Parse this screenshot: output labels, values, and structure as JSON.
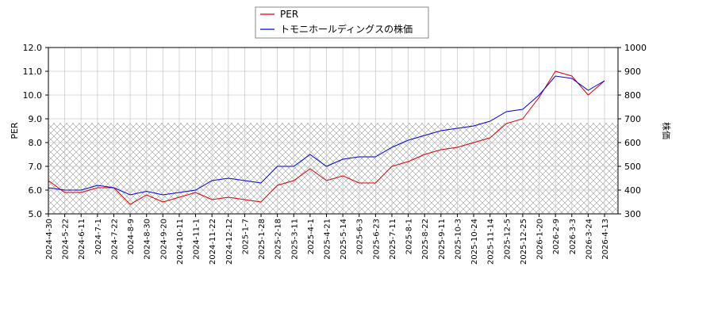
{
  "chart_data": {
    "type": "line",
    "x": [
      "2024-4-30",
      "2024-5-22",
      "2024-6-11",
      "2024-7-1",
      "2024-7-22",
      "2024-8-9",
      "2024-8-30",
      "2024-9-20",
      "2024-10-11",
      "2024-11-1",
      "2024-11-22",
      "2024-12-12",
      "2025-1-7",
      "2025-1-28",
      "2025-2-18",
      "2025-3-11",
      "2025-4-1",
      "2025-4-21",
      "2025-5-14",
      "2025-6-3",
      "2025-6-23",
      "2025-7-11",
      "2025-8-1",
      "2025-8-22",
      "2025-9-11",
      "2025-10-3",
      "2025-10-24",
      "2025-11-14",
      "2025-12-5",
      "2025-12-25",
      "2026-1-20",
      "2026-2-9",
      "2026-3-3",
      "2026-3-24",
      "2026-4-13"
    ],
    "y_label": "PER",
    "y2_label": "株価",
    "ylim": [
      5,
      12
    ],
    "yticks": [
      {
        "value": 5,
        "label": "5.0"
      },
      {
        "value": 6,
        "label": "6.0"
      },
      {
        "value": 7,
        "label": "7.0"
      },
      {
        "value": 8,
        "label": "8.0"
      },
      {
        "value": 9,
        "label": "9.0"
      },
      {
        "value": 10,
        "label": "10.0"
      },
      {
        "value": 11,
        "label": "11.0"
      },
      {
        "value": 12,
        "label": "12.0"
      }
    ],
    "y2lim": [
      300,
      1000
    ],
    "y2ticks": [
      300,
      400,
      500,
      600,
      700,
      800,
      900,
      1000
    ],
    "hatch_range": [
      5,
      8.83
    ],
    "grid": true,
    "series": [
      {
        "name": "PER",
        "color": "#dd0000",
        "values": [
          6.4,
          5.9,
          5.9,
          6.1,
          6.1,
          5.4,
          5.8,
          5.5,
          5.7,
          5.9,
          5.6,
          5.7,
          5.6,
          5.5,
          6.2,
          6.4,
          6.9,
          6.4,
          6.6,
          6.3,
          6.3,
          7.0,
          7.2,
          7.5,
          7.7,
          7.8,
          8.0,
          8.2,
          8.8,
          9.0,
          9.9,
          11.0,
          10.8,
          10.0,
          10.6
        ]
      },
      {
        "name": "トモニホールディングスの株価",
        "color": "#0000dd",
        "axis": "y2",
        "values": [
          410,
          400,
          400,
          420,
          410,
          380,
          395,
          380,
          390,
          400,
          440,
          450,
          440,
          430,
          500,
          500,
          550,
          500,
          530,
          540,
          540,
          580,
          610,
          630,
          650,
          660,
          670,
          690,
          730,
          740,
          800,
          880,
          870,
          820,
          860
        ]
      }
    ]
  }
}
